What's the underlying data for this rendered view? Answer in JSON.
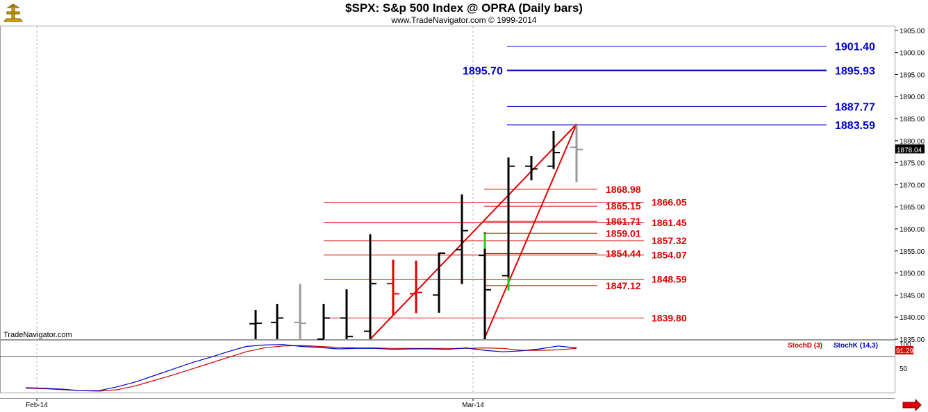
{
  "header": {
    "title": "$SPX:  S&p 500 Index @ OPRA  (Daily bars)",
    "subtitle": "www.TradeNavigator.com © 1999-2014",
    "watermark": "TradeNavigator.com"
  },
  "colors": {
    "price_bar": "#000000",
    "red_bar": "#e00000",
    "last_bar": "#999999",
    "green_mark": "#22cc22",
    "blue_levels": "#0000cc",
    "red_levels": "#e00000",
    "trendline": "#e00000",
    "stochK": "#0000cc",
    "stochD": "#cc0000"
  },
  "chart_data": [
    {
      "type": "ohlc",
      "title": "$SPX:  S&p 500 Index @ OPRA  (Daily bars)",
      "price_axis": {
        "min": 1835,
        "max": 1905,
        "ticks": [
          "1835.00",
          "1840.00",
          "1845.00",
          "1850.00",
          "1855.00",
          "1860.00",
          "1865.00",
          "1870.00",
          "1875.00",
          "1880.00",
          "1885.00",
          "1890.00",
          "1895.00",
          "1900.00",
          "1905.00"
        ],
        "last_price_label": "1878.04"
      },
      "x_axis_labels": [
        "Feb-14",
        "Mar-14"
      ],
      "bars": [
        {
          "o": 1838.5,
          "h": 1841.6,
          "l": 1832.0,
          "c": 1838.6,
          "color": "black"
        },
        {
          "o": 1838.8,
          "h": 1843.0,
          "l": 1832.0,
          "c": 1839.8,
          "color": "black"
        },
        {
          "o": 1838.8,
          "h": 1847.5,
          "l": 1832.0,
          "c": 1838.6,
          "color": "gray"
        },
        {
          "o": 1835.0,
          "h": 1843.0,
          "l": 1832.0,
          "c": 1839.8,
          "color": "black"
        },
        {
          "o": 1839.8,
          "h": 1846.3,
          "l": 1832.0,
          "c": 1835.6,
          "color": "black"
        },
        {
          "o": 1836.8,
          "h": 1858.8,
          "l": 1835.0,
          "c": 1847.6,
          "color": "black"
        },
        {
          "o": 1847.6,
          "h": 1853.0,
          "l": 1840.5,
          "c": 1845.3,
          "color": "red"
        },
        {
          "o": 1845.3,
          "h": 1852.8,
          "l": 1840.9,
          "c": 1845.6,
          "color": "red"
        },
        {
          "o": 1845.0,
          "h": 1854.6,
          "l": 1841.0,
          "c": 1854.5,
          "color": "black"
        },
        {
          "o": 1855.3,
          "h": 1867.8,
          "l": 1847.5,
          "c": 1859.6,
          "color": "black"
        },
        {
          "o": 1854.0,
          "h": 1859.2,
          "l": 1834.3,
          "c": 1846.2,
          "color": "black",
          "green_segment": [
            1855.5,
            1859.0
          ]
        },
        {
          "o": 1849.4,
          "h": 1876.2,
          "l": 1846.0,
          "c": 1874.2,
          "color": "black",
          "green_segment": [
            1846.0,
            1849.0
          ]
        },
        {
          "o": 1874.2,
          "h": 1876.5,
          "l": 1871.0,
          "c": 1873.6,
          "color": "black"
        },
        {
          "o": 1874.2,
          "h": 1882.2,
          "l": 1873.6,
          "c": 1877.3,
          "color": "black"
        },
        {
          "o": 1878.5,
          "h": 1883.6,
          "l": 1870.6,
          "c": 1878.0,
          "color": "gray"
        }
      ],
      "blue_levels": [
        {
          "label": "1901.40",
          "value": 1901.4
        },
        {
          "label": "1895.93",
          "value": 1895.93
        },
        {
          "label": "1887.77",
          "value": 1887.77
        },
        {
          "label": "1883.59",
          "value": 1883.59
        }
      ],
      "blue_left_label": "1895.70",
      "red_levels_right": [
        {
          "label": "1866.05",
          "value": 1866.05
        },
        {
          "label": "1861.45",
          "value": 1861.45
        },
        {
          "label": "1857.32",
          "value": 1857.32
        },
        {
          "label": "1854.07",
          "value": 1854.07
        },
        {
          "label": "1848.59",
          "value": 1848.59
        },
        {
          "label": "1839.80",
          "value": 1839.8
        }
      ],
      "red_levels_mid": [
        {
          "label": "1868.98",
          "value": 1868.98
        },
        {
          "label": "1865.15",
          "value": 1865.15
        },
        {
          "label": "1861.71",
          "value": 1861.71
        },
        {
          "label": "1859.01",
          "value": 1859.01
        },
        {
          "label": "1854.44",
          "value": 1854.44
        },
        {
          "label": "1847.12",
          "value": 1847.12
        }
      ]
    },
    {
      "type": "line",
      "title": "",
      "y_axis": {
        "min": 0,
        "max": 100,
        "ticks": [
          "50",
          "100"
        ],
        "last_value_label": "91.29"
      },
      "series": [
        {
          "name": "StochD (3)",
          "color": "red",
          "values": [
            9,
            8,
            6,
            4,
            3,
            6,
            14,
            25,
            36,
            48,
            60,
            72,
            84,
            92,
            96,
            97,
            95,
            93,
            92,
            92,
            91,
            91,
            91,
            91,
            91,
            92,
            91,
            87,
            87,
            88,
            91
          ]
        },
        {
          "name": "StochK (14,3)",
          "color": "blue",
          "values": [
            10,
            9,
            7,
            4,
            4,
            12,
            22,
            35,
            48,
            61,
            72,
            84,
            95,
            98,
            99,
            95,
            93,
            90,
            91,
            91,
            89,
            90,
            90,
            89,
            92,
            87,
            84,
            86,
            90,
            96,
            92
          ]
        }
      ]
    }
  ]
}
